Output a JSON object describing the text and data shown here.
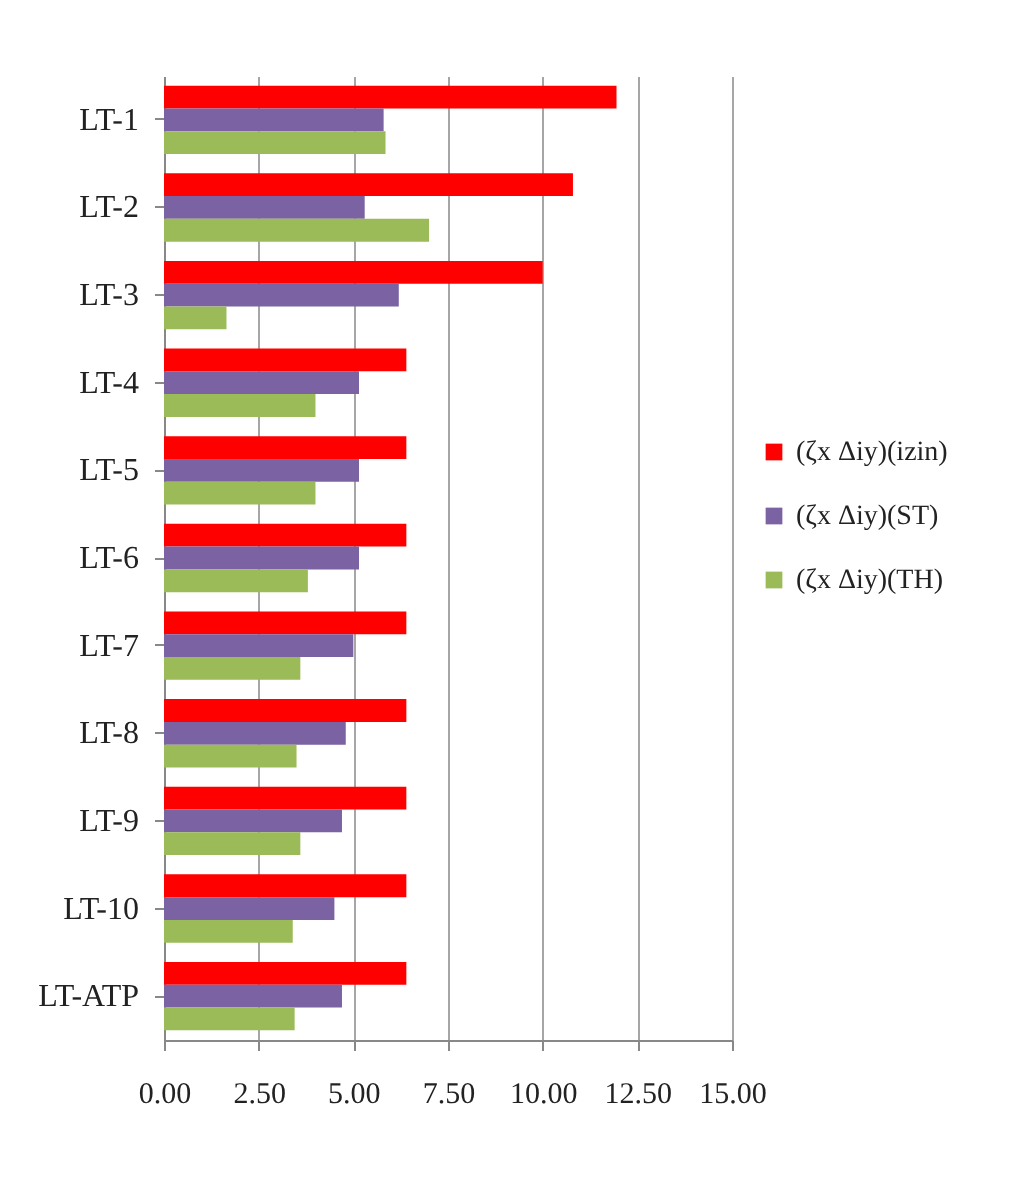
{
  "chart_data": {
    "type": "bar",
    "orientation": "horizontal",
    "categories": [
      "LT-1",
      "LT-2",
      "LT-3",
      "LT-4",
      "LT-5",
      "LT-6",
      "LT-7",
      "LT-8",
      "LT-9",
      "LT-10",
      "LT-ATP"
    ],
    "series": [
      {
        "name": "(ζx Δiy)(izin)",
        "color": "#ff0000",
        "values": [
          11.95,
          10.8,
          10.0,
          6.4,
          6.4,
          6.4,
          6.4,
          6.4,
          6.4,
          6.4,
          6.4
        ]
      },
      {
        "name": "(ζx Δiy)(ST)",
        "color": "#7b62a3",
        "values": [
          5.8,
          5.3,
          6.2,
          5.15,
          5.15,
          5.15,
          5.0,
          4.8,
          4.7,
          4.5,
          4.7
        ]
      },
      {
        "name": "(ζx Δiy)(TH)",
        "color": "#9bbb59",
        "values": [
          5.85,
          7.0,
          1.65,
          4.0,
          4.0,
          3.8,
          3.6,
          3.5,
          3.6,
          3.4,
          3.45
        ]
      }
    ],
    "xlim": [
      0,
      15
    ],
    "xticks": [
      {
        "value": 0,
        "label": "0.00"
      },
      {
        "value": 2.5,
        "label": "2.50"
      },
      {
        "value": 5,
        "label": "5.00"
      },
      {
        "value": 7.5,
        "label": "7.50"
      },
      {
        "value": 10,
        "label": "10.00"
      },
      {
        "value": 12.5,
        "label": "12.50"
      },
      {
        "value": 15,
        "label": "15.00"
      }
    ],
    "grid": "x",
    "legend": "right"
  }
}
